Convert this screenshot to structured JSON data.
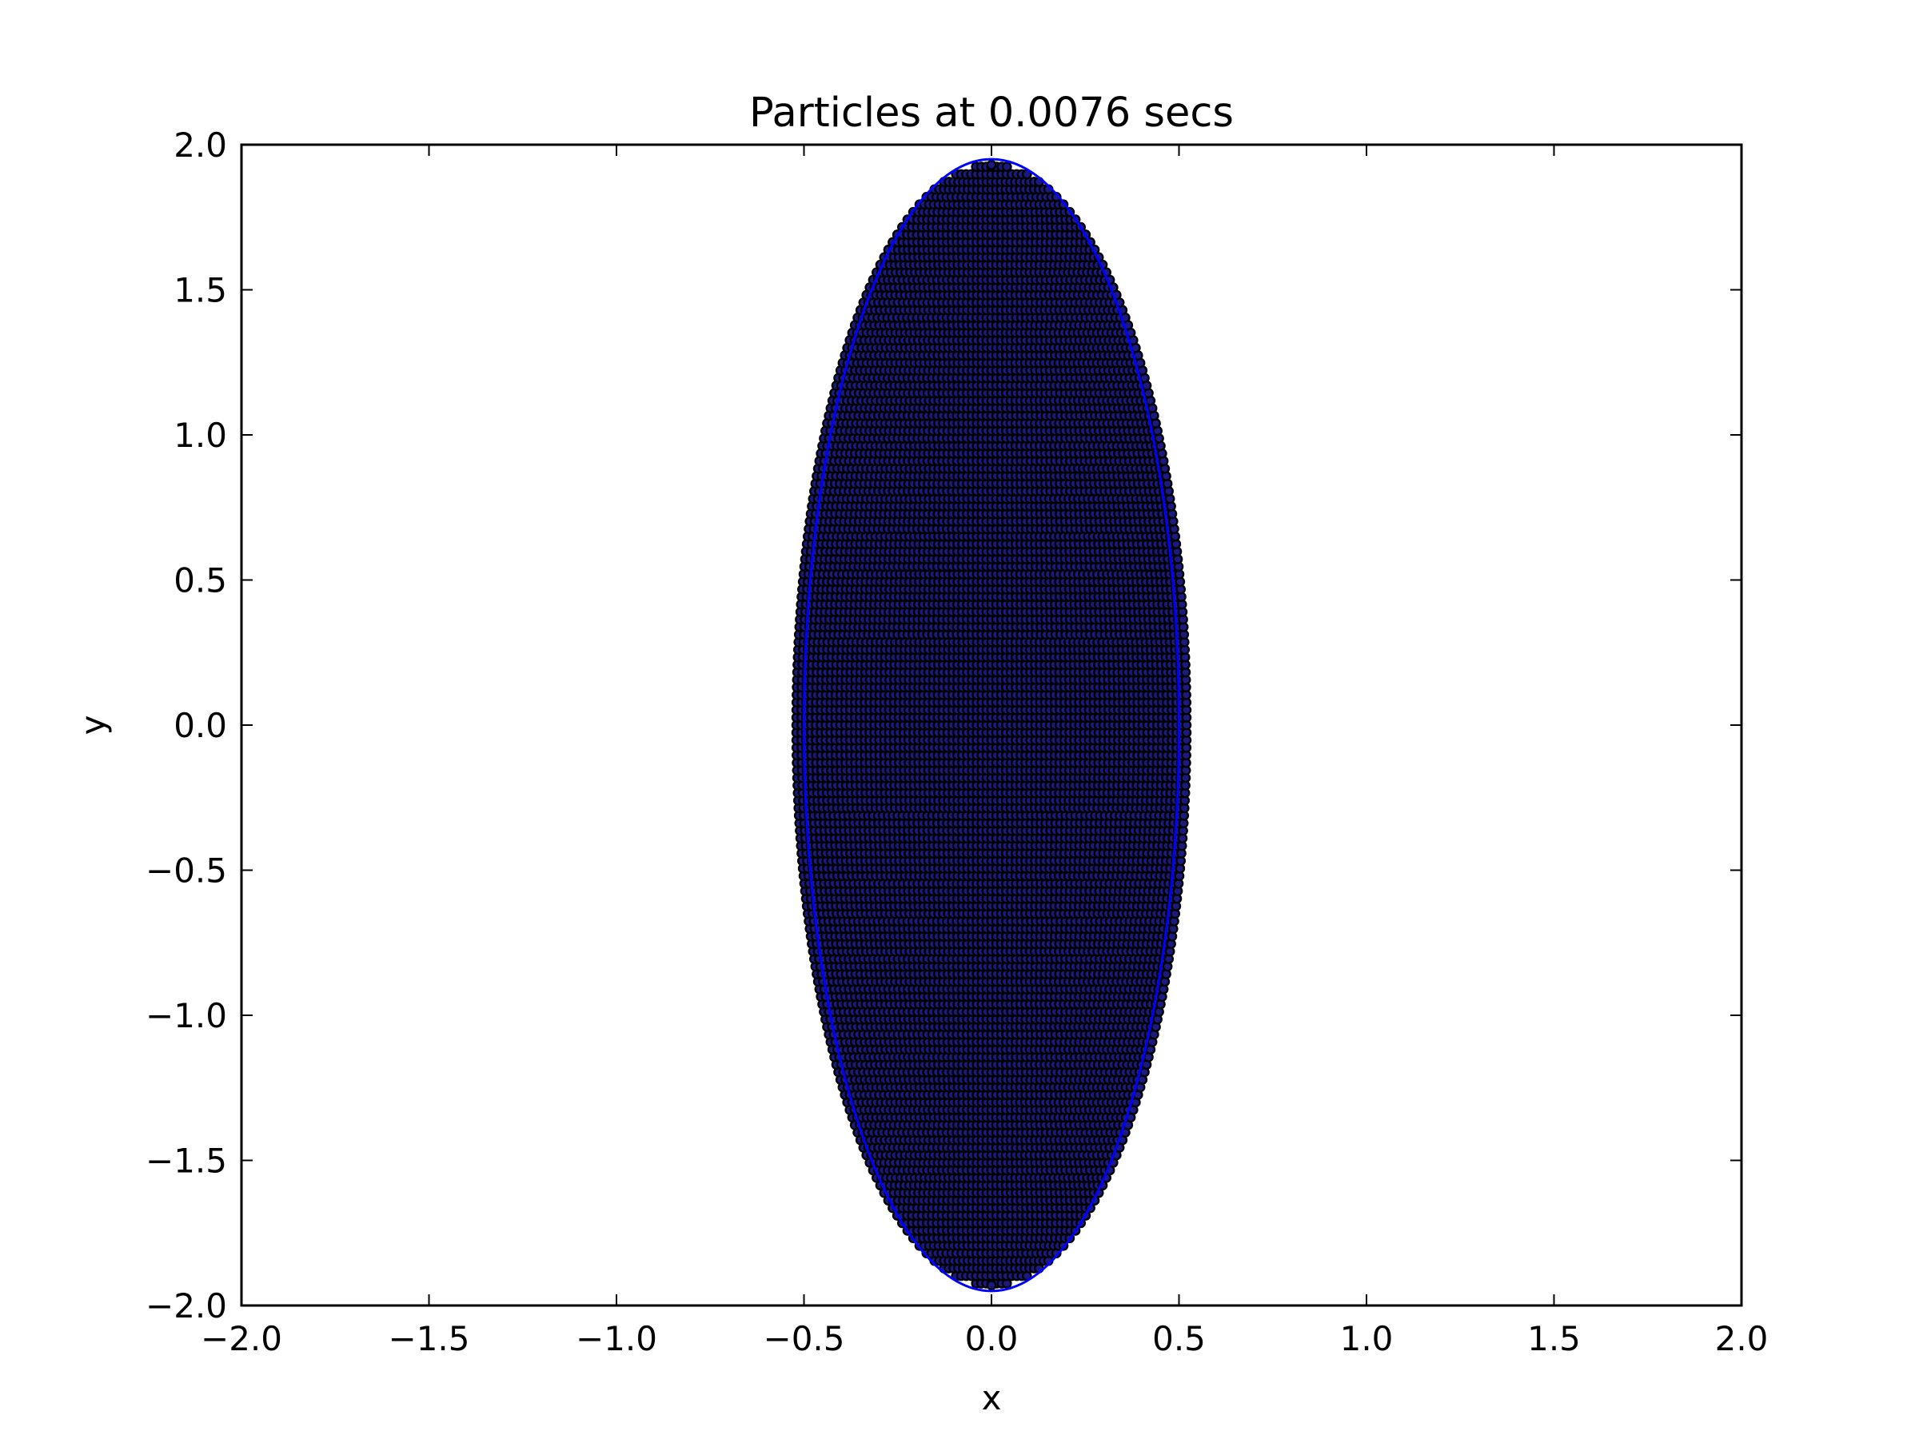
{
  "figure": {
    "title": "Particles at 0.0076 secs",
    "xlabel": "x",
    "ylabel": "y"
  },
  "chart_data": {
    "type": "scatter",
    "title": "Particles at 0.0076 secs",
    "xlabel": "x",
    "ylabel": "y",
    "xlim": [
      -2.0,
      2.0
    ],
    "ylim": [
      -2.0,
      2.0
    ],
    "grid": false,
    "legend": "none",
    "xticks": [
      -2.0,
      -1.5,
      -1.0,
      -0.5,
      0.0,
      0.5,
      1.0,
      1.5,
      2.0
    ],
    "xtick_labels": [
      "−2.0",
      "−1.5",
      "−1.0",
      "−0.5",
      "0.0",
      "0.5",
      "1.0",
      "1.5",
      "2.0"
    ],
    "yticks": [
      -2.0,
      -1.5,
      -1.0,
      -0.5,
      0.0,
      0.5,
      1.0,
      1.5,
      2.0
    ],
    "ytick_labels": [
      "−2.0",
      "−1.5",
      "−1.0",
      "−0.5",
      "0.0",
      "0.5",
      "1.0",
      "1.5",
      "2.0"
    ],
    "series": [
      {
        "kind": "particles",
        "marker": "filled-circle",
        "color": "#000000",
        "fill": "#1a1a80",
        "distribution": "rows",
        "center": [
          0.0,
          0.0
        ],
        "semi_axis_x": 0.52,
        "semi_axis_y": 1.93,
        "row_spacing": 0.026,
        "point_spacing": 0.013,
        "rows_shown": 149,
        "row_gap_every": 1
      },
      {
        "kind": "boundary",
        "shape": "ellipse",
        "color": "#0000ff",
        "center": [
          0.0,
          0.0
        ],
        "semi_axis_x": 0.5,
        "semi_axis_y": 1.95
      }
    ]
  }
}
